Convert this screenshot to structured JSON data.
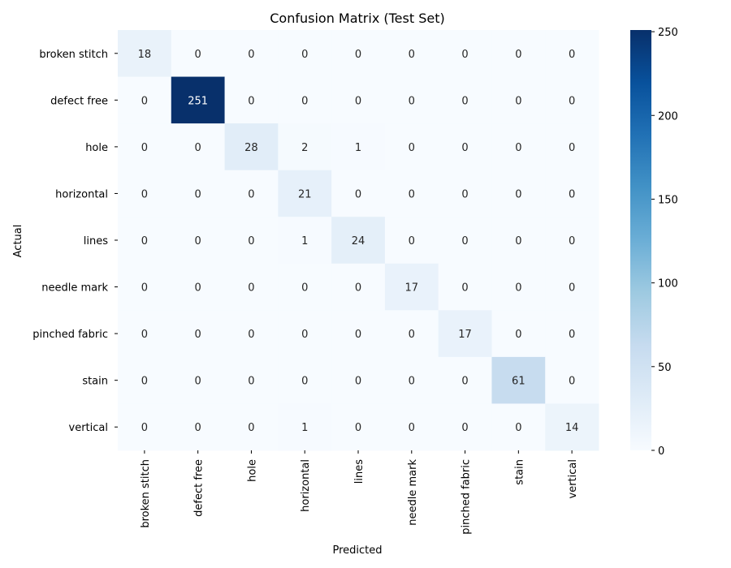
{
  "chart_data": {
    "type": "heatmap",
    "title": "Confusion Matrix (Test Set)",
    "xlabel": "Predicted",
    "ylabel": "Actual",
    "x_categories": [
      "broken stitch",
      "defect free",
      "hole",
      "horizontal",
      "lines",
      "needle mark",
      "pinched fabric",
      "stain",
      "vertical"
    ],
    "y_categories": [
      "broken stitch",
      "defect free",
      "hole",
      "horizontal",
      "lines",
      "needle mark",
      "pinched fabric",
      "stain",
      "vertical"
    ],
    "values": [
      [
        18,
        0,
        0,
        0,
        0,
        0,
        0,
        0,
        0
      ],
      [
        0,
        251,
        0,
        0,
        0,
        0,
        0,
        0,
        0
      ],
      [
        0,
        0,
        28,
        2,
        1,
        0,
        0,
        0,
        0
      ],
      [
        0,
        0,
        0,
        21,
        0,
        0,
        0,
        0,
        0
      ],
      [
        0,
        0,
        0,
        1,
        24,
        0,
        0,
        0,
        0
      ],
      [
        0,
        0,
        0,
        0,
        0,
        17,
        0,
        0,
        0
      ],
      [
        0,
        0,
        0,
        0,
        0,
        0,
        17,
        0,
        0
      ],
      [
        0,
        0,
        0,
        0,
        0,
        0,
        0,
        61,
        0
      ],
      [
        0,
        0,
        0,
        1,
        0,
        0,
        0,
        0,
        14
      ]
    ],
    "colorbar": {
      "min": 0,
      "max": 251,
      "ticks": [
        0,
        50,
        100,
        150,
        200,
        250
      ]
    },
    "colormap": "Blues",
    "colors": {
      "low": "#f7fbff",
      "high": "#08306b"
    }
  }
}
